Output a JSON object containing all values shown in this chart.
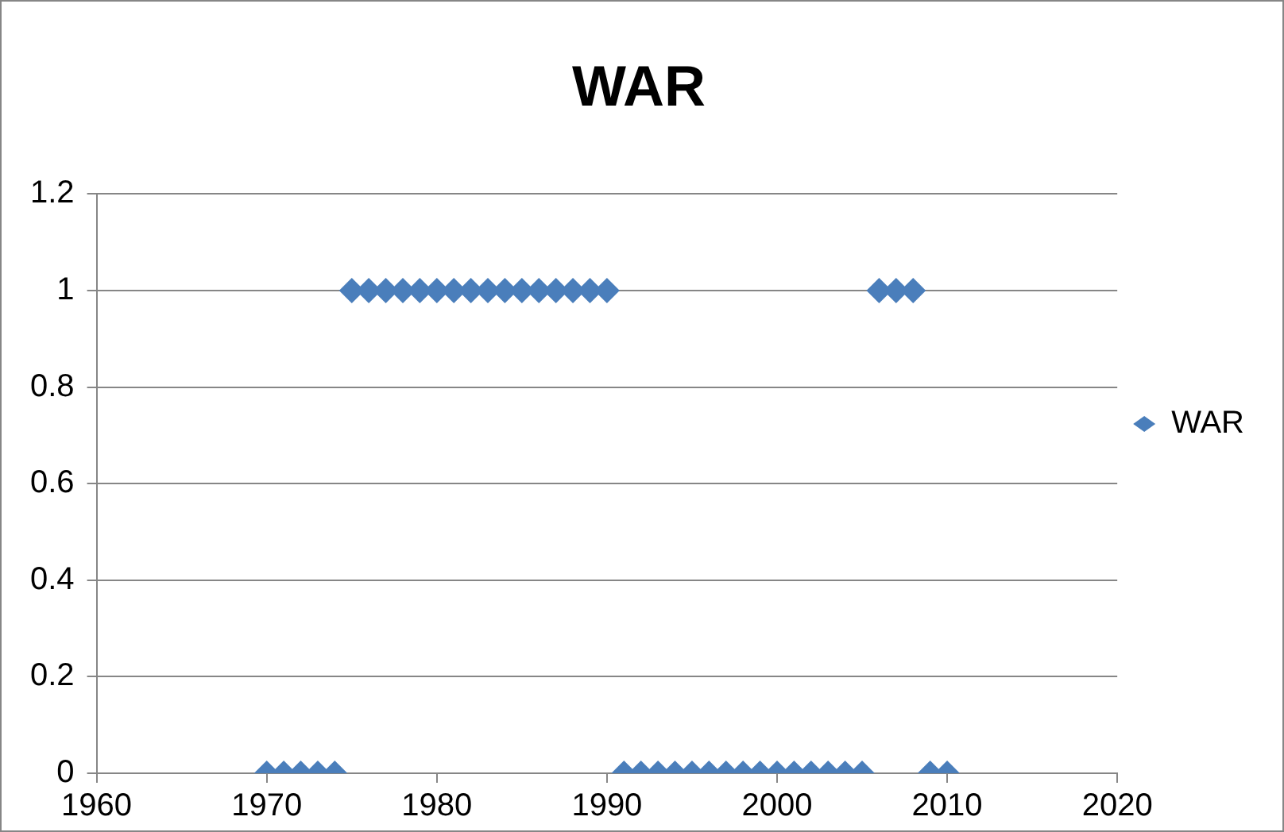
{
  "chart_data": {
    "type": "scatter",
    "title": "WAR",
    "x": [
      1970,
      1971,
      1972,
      1973,
      1974,
      1975,
      1976,
      1977,
      1978,
      1979,
      1980,
      1981,
      1982,
      1983,
      1984,
      1985,
      1986,
      1987,
      1988,
      1989,
      1990,
      1991,
      1992,
      1993,
      1994,
      1995,
      1996,
      1997,
      1998,
      1999,
      2000,
      2001,
      2002,
      2003,
      2004,
      2005,
      2006,
      2007,
      2008,
      2009,
      2010
    ],
    "series": [
      {
        "name": "WAR",
        "color": "#4a7ebb",
        "values": [
          0,
          0,
          0,
          0,
          0,
          1,
          1,
          1,
          1,
          1,
          1,
          1,
          1,
          1,
          1,
          1,
          1,
          1,
          1,
          1,
          1,
          0,
          0,
          0,
          0,
          0,
          0,
          0,
          0,
          0,
          0,
          0,
          0,
          0,
          0,
          0,
          1,
          1,
          1,
          0,
          0
        ]
      }
    ],
    "xlim": [
      1960,
      2020
    ],
    "xticks": [
      1960,
      1970,
      1980,
      1990,
      2000,
      2010,
      2020
    ],
    "ylim": [
      0,
      1.2
    ],
    "yticks": [
      0,
      0.2,
      0.4,
      0.6,
      0.8,
      1,
      1.2
    ],
    "grid": "y",
    "legend": "right",
    "marker": "diamond"
  }
}
